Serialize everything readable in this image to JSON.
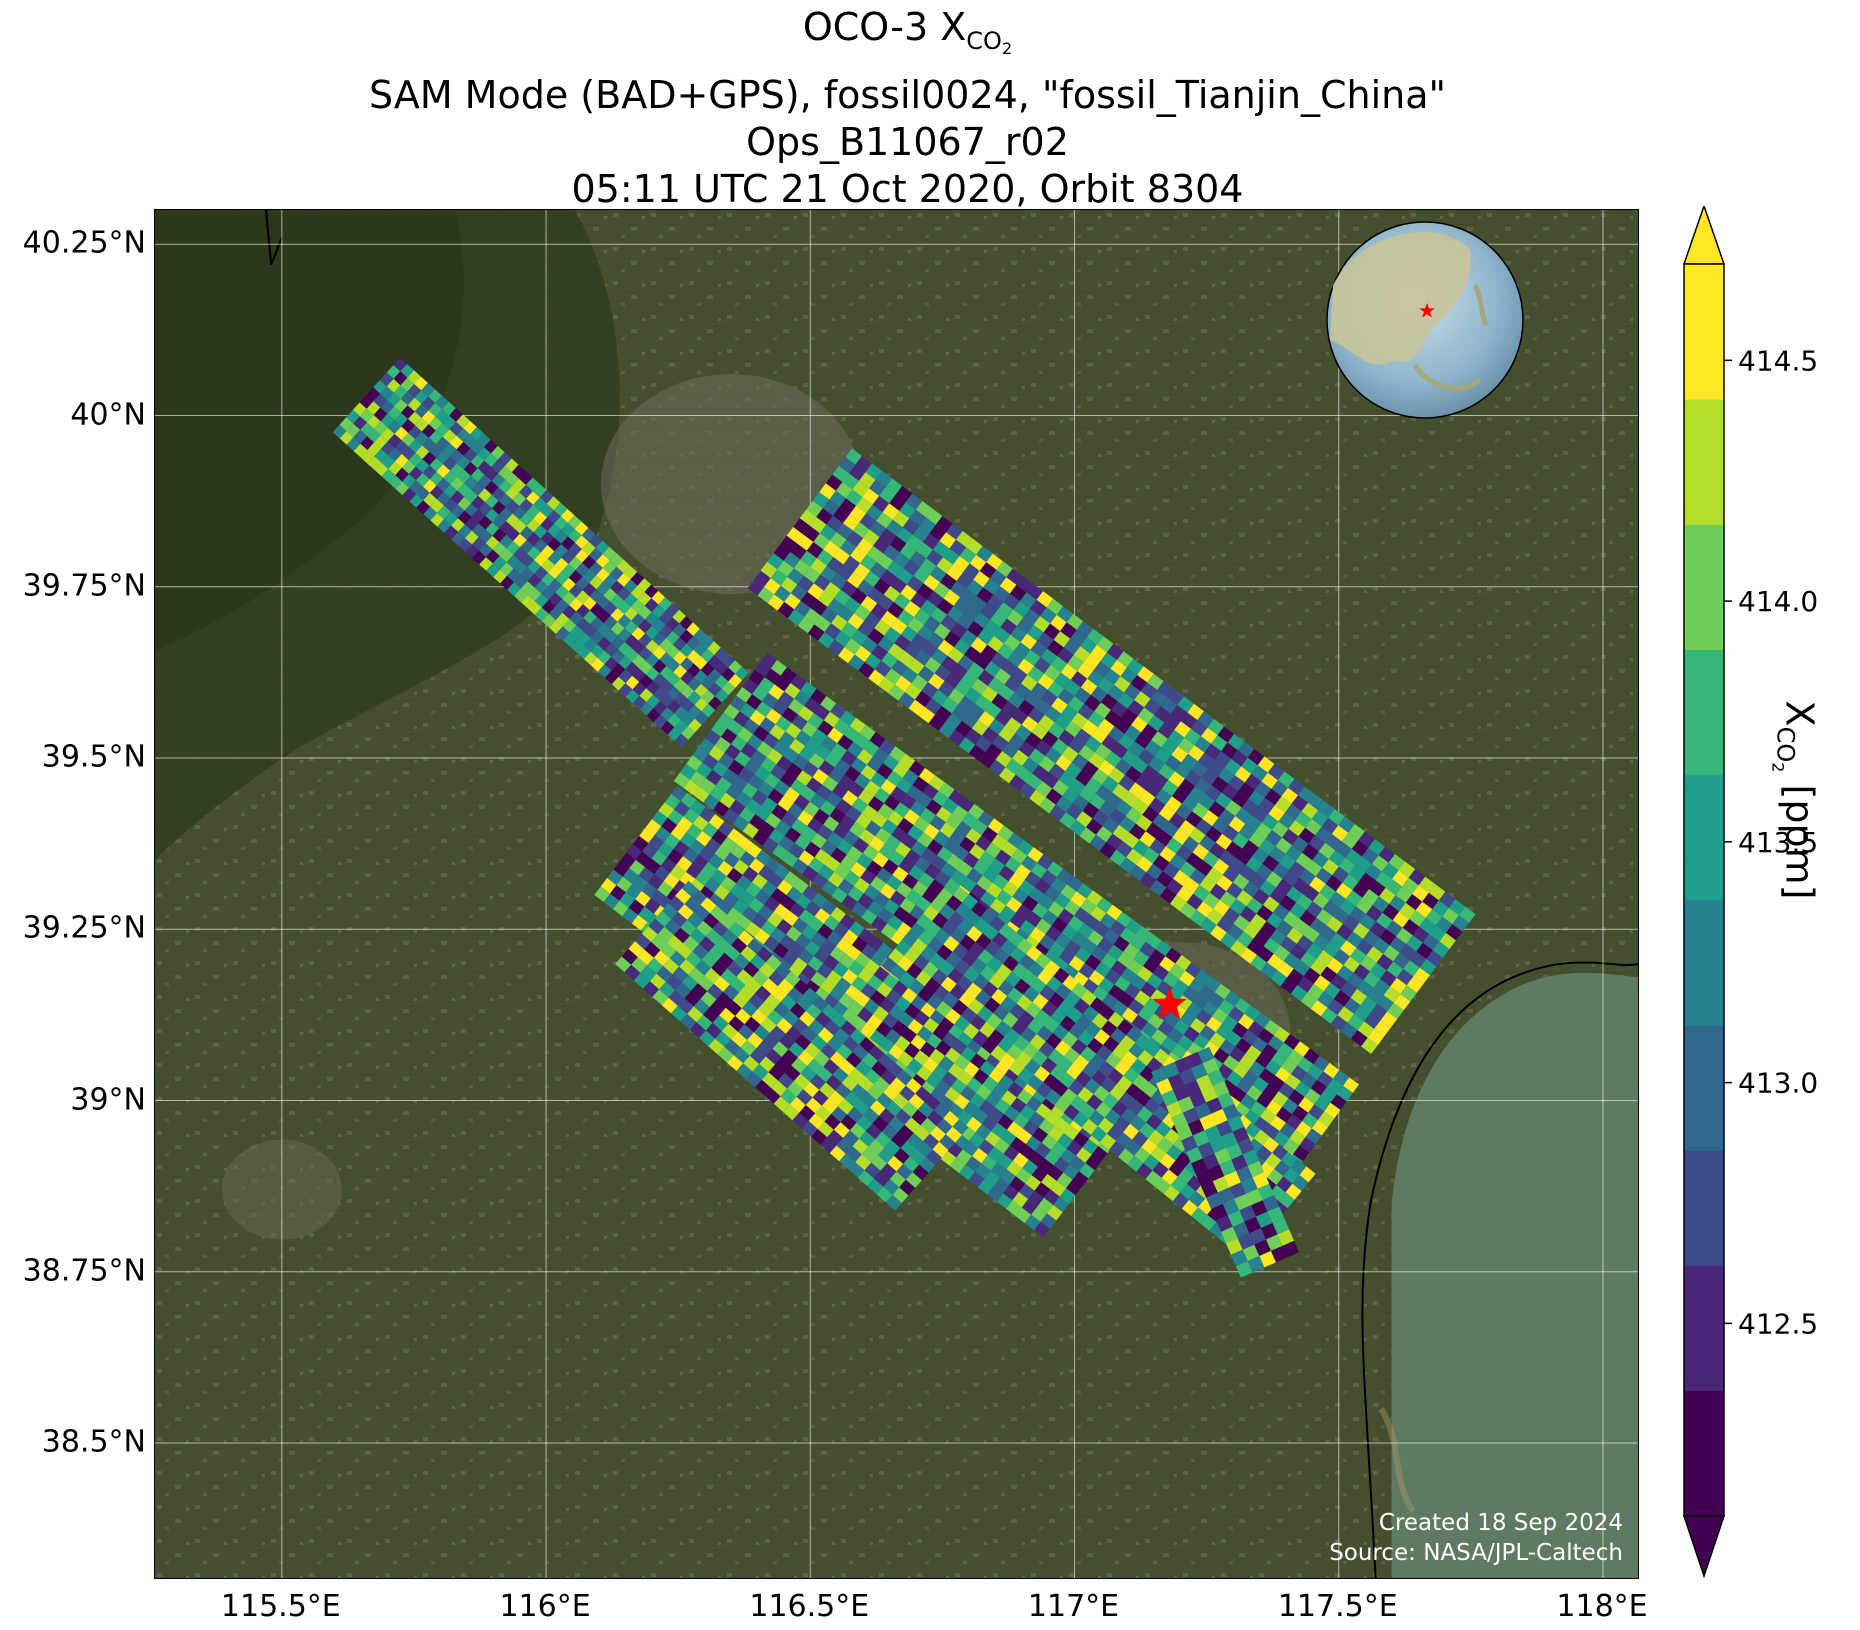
{
  "title": {
    "line1_prefix": "OCO-3 X",
    "line1_sub": "CO",
    "line1_subsub": "2",
    "line2": "SAM Mode (BAD+GPS), fossil0024, \"fossil_Tianjin_China\"",
    "line3": "Ops_B11067_r02",
    "line4": "05:11 UTC 21 Oct 2020, Orbit 8304"
  },
  "map": {
    "lon_range": [
      115.26,
      118.07
    ],
    "lat_range": [
      38.3,
      40.3
    ],
    "lon_ticks": [
      {
        "value": 115.5,
        "label": "115.5°E"
      },
      {
        "value": 116.0,
        "label": "116°E"
      },
      {
        "value": 116.5,
        "label": "116.5°E"
      },
      {
        "value": 117.0,
        "label": "117°E"
      },
      {
        "value": 117.5,
        "label": "117.5°E"
      },
      {
        "value": 118.0,
        "label": "118°E"
      }
    ],
    "lat_ticks": [
      {
        "value": 40.25,
        "label": "40.25°N"
      },
      {
        "value": 40.0,
        "label": "40°N"
      },
      {
        "value": 39.75,
        "label": "39.75°N"
      },
      {
        "value": 39.5,
        "label": "39.5°N"
      },
      {
        "value": 39.25,
        "label": "39.25°N"
      },
      {
        "value": 39.0,
        "label": "39°N"
      },
      {
        "value": 38.75,
        "label": "38.75°N"
      },
      {
        "value": 38.5,
        "label": "38.5°N"
      }
    ],
    "target": {
      "lon": 117.18,
      "lat": 39.14,
      "marker": "red-star"
    },
    "basemap_colors": {
      "land": "#46502f",
      "land_dark": "#34401f",
      "urban": "#6e6a5c",
      "sea": "#5f7f63",
      "coast": "#000000"
    },
    "swaths": [
      {
        "start": [
          115.66,
          40.03
        ],
        "end": [
          116.32,
          39.57
        ],
        "width_deg": 0.19,
        "rows": 50,
        "cols": 10
      },
      {
        "start": [
          116.48,
          39.85
        ],
        "end": [
          117.66,
          39.17
        ],
        "width_deg": 0.33,
        "rows": 62,
        "cols": 16
      },
      {
        "start": [
          116.33,
          39.56
        ],
        "end": [
          117.45,
          38.93
        ],
        "width_deg": 0.3,
        "rows": 60,
        "cols": 15
      },
      {
        "start": [
          116.17,
          39.38
        ],
        "end": [
          117.02,
          38.88
        ],
        "width_deg": 0.26,
        "rows": 48,
        "cols": 13
      },
      {
        "start": [
          116.2,
          39.26
        ],
        "end": [
          116.73,
          38.9
        ],
        "width_deg": 0.21,
        "rows": 30,
        "cols": 11
      },
      {
        "start": [
          116.7,
          39.26
        ],
        "end": [
          117.39,
          38.83
        ],
        "width_deg": 0.21,
        "rows": 40,
        "cols": 10
      },
      {
        "start": [
          117.2,
          39.06
        ],
        "end": [
          117.37,
          38.76
        ],
        "width_deg": 0.12,
        "rows": 18,
        "cols": 5
      }
    ]
  },
  "colorbar": {
    "colormap": "viridis",
    "vmin": 412.1,
    "vmax": 414.7,
    "extend": "both",
    "ticks": [
      {
        "value": 412.5,
        "label": "412.5"
      },
      {
        "value": 413.0,
        "label": "413.0"
      },
      {
        "value": 413.5,
        "label": "413.5"
      },
      {
        "value": 414.0,
        "label": "414.0"
      },
      {
        "value": 414.5,
        "label": "414.5"
      }
    ],
    "label_prefix": "X",
    "label_sub": "CO",
    "label_subsub": "2",
    "label_suffix": " [ppm]"
  },
  "inset_globe": {
    "center": "East Asia",
    "marker": "red-star"
  },
  "credits": {
    "created": "Created 18 Sep 2024",
    "source": "Source: NASA/JPL-Caltech"
  }
}
